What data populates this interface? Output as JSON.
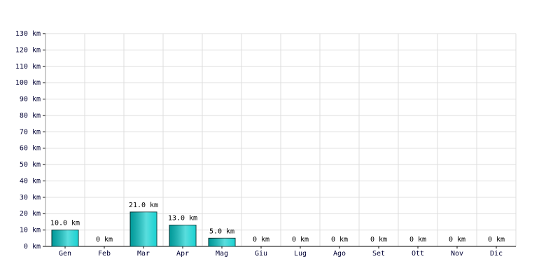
{
  "chart_data": {
    "type": "bar",
    "categories": [
      "Gen",
      "Feb",
      "Mar",
      "Apr",
      "Mag",
      "Giu",
      "Lug",
      "Ago",
      "Set",
      "Ott",
      "Nov",
      "Dic"
    ],
    "values": [
      10,
      0,
      21,
      13,
      5,
      0,
      0,
      0,
      0,
      0,
      0,
      0
    ],
    "value_labels": [
      "10.0 km",
      "0 km",
      "21.0 km",
      "13.0 km",
      "5.0 km",
      "0 km",
      "0 km",
      "0 km",
      "0 km",
      "0 km",
      "0 km",
      "0 km"
    ],
    "color": "#00cccc",
    "ylim": [
      0,
      130
    ],
    "yticks": [
      {
        "value": 0,
        "label": "0 km"
      },
      {
        "value": 10,
        "label": "10 km"
      },
      {
        "value": 20,
        "label": "20 km"
      },
      {
        "value": 30,
        "label": "30 km"
      },
      {
        "value": 40,
        "label": "40 km"
      },
      {
        "value": 50,
        "label": "50 km"
      },
      {
        "value": 60,
        "label": "60 km"
      },
      {
        "value": 70,
        "label": "70 km"
      },
      {
        "value": 80,
        "label": "80 km"
      },
      {
        "value": 90,
        "label": "90 km"
      },
      {
        "value": 100,
        "label": "100 km"
      },
      {
        "value": 110,
        "label": "110 km"
      },
      {
        "value": 120,
        "label": "120 km"
      },
      {
        "value": 130,
        "label": "130 km"
      }
    ],
    "grid": true
  }
}
